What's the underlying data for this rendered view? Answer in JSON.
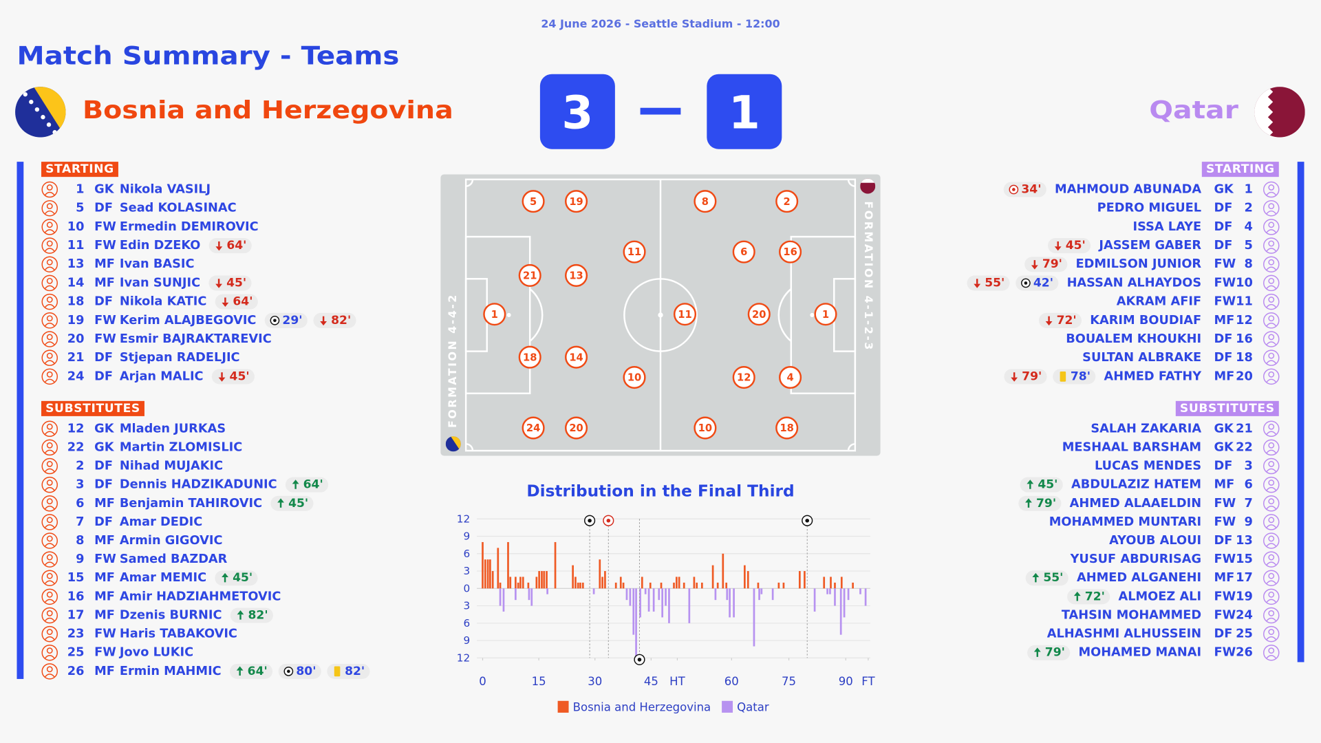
{
  "header": {
    "date_venue": "24 June 2026 - Seattle Stadium - 12:00",
    "title": "Match Summary - Teams"
  },
  "home": {
    "name": "Bosnia and Herzegovina",
    "score": 3,
    "formation": "FORMATION 4-4-2",
    "starting_label": "STARTING",
    "substitutes_label": "SUBSTITUTES",
    "starting": [
      {
        "number": 1,
        "pos": "GK",
        "name": "Nikola VASILJ"
      },
      {
        "number": 5,
        "pos": "DF",
        "name": "Sead KOLASINAC"
      },
      {
        "number": 10,
        "pos": "FW",
        "name": "Ermedin DEMIROVIC"
      },
      {
        "number": 11,
        "pos": "FW",
        "name": "Edin DZEKO",
        "events": [
          {
            "type": "off",
            "minute": "64'"
          }
        ]
      },
      {
        "number": 13,
        "pos": "MF",
        "name": "Ivan BASIC"
      },
      {
        "number": 14,
        "pos": "MF",
        "name": "Ivan SUNJIC",
        "events": [
          {
            "type": "off",
            "minute": "45'"
          }
        ]
      },
      {
        "number": 18,
        "pos": "DF",
        "name": "Nikola KATIC",
        "events": [
          {
            "type": "off",
            "minute": "64'"
          }
        ]
      },
      {
        "number": 19,
        "pos": "FW",
        "name": "Kerim ALAJBEGOVIC",
        "events": [
          {
            "type": "goal",
            "minute": "29'"
          },
          {
            "type": "off",
            "minute": "82'"
          }
        ]
      },
      {
        "number": 20,
        "pos": "FW",
        "name": "Esmir BAJRAKTAREVIC"
      },
      {
        "number": 21,
        "pos": "DF",
        "name": "Stjepan RADELJIC"
      },
      {
        "number": 24,
        "pos": "DF",
        "name": "Arjan MALIC",
        "events": [
          {
            "type": "off",
            "minute": "45'"
          }
        ]
      }
    ],
    "substitutes": [
      {
        "number": 12,
        "pos": "GK",
        "name": "Mladen JURKAS"
      },
      {
        "number": 22,
        "pos": "GK",
        "name": "Martin ZLOMISLIC"
      },
      {
        "number": 2,
        "pos": "DF",
        "name": "Nihad MUJAKIC"
      },
      {
        "number": 3,
        "pos": "DF",
        "name": "Dennis HADZIKADUNIC",
        "events": [
          {
            "type": "on",
            "minute": "64'"
          }
        ]
      },
      {
        "number": 6,
        "pos": "MF",
        "name": "Benjamin TAHIROVIC",
        "events": [
          {
            "type": "on",
            "minute": "45'"
          }
        ]
      },
      {
        "number": 7,
        "pos": "DF",
        "name": "Amar DEDIC"
      },
      {
        "number": 8,
        "pos": "MF",
        "name": "Armin GIGOVIC"
      },
      {
        "number": 9,
        "pos": "FW",
        "name": "Samed BAZDAR"
      },
      {
        "number": 15,
        "pos": "MF",
        "name": "Amar MEMIC",
        "events": [
          {
            "type": "on",
            "minute": "45'"
          }
        ]
      },
      {
        "number": 16,
        "pos": "MF",
        "name": "Amir HADZIAHMETOVIC"
      },
      {
        "number": 17,
        "pos": "MF",
        "name": "Dzenis BURNIC",
        "events": [
          {
            "type": "on",
            "minute": "82'"
          }
        ]
      },
      {
        "number": 23,
        "pos": "FW",
        "name": "Haris TABAKOVIC"
      },
      {
        "number": 25,
        "pos": "FW",
        "name": "Jovo LUKIC"
      },
      {
        "number": 26,
        "pos": "MF",
        "name": "Ermin MAHMIC",
        "events": [
          {
            "type": "on",
            "minute": "64'"
          },
          {
            "type": "goal",
            "minute": "80'"
          },
          {
            "type": "yellow",
            "minute": "82'"
          }
        ]
      }
    ],
    "pitch": [
      1,
      5,
      21,
      18,
      24,
      19,
      13,
      14,
      20,
      11,
      10
    ]
  },
  "away": {
    "name": "Qatar",
    "score": 1,
    "formation": "FORMATION 4-1-2-3",
    "starting_label": "STARTING",
    "substitutes_label": "SUBSTITUTES",
    "starting": [
      {
        "number": 1,
        "pos": "GK",
        "name": "MAHMOUD ABUNADA",
        "events": [
          {
            "type": "own-goal",
            "minute": "34'"
          }
        ]
      },
      {
        "number": 2,
        "pos": "DF",
        "name": "PEDRO MIGUEL"
      },
      {
        "number": 4,
        "pos": "DF",
        "name": "ISSA LAYE"
      },
      {
        "number": 5,
        "pos": "DF",
        "name": "JASSEM GABER",
        "events": [
          {
            "type": "off",
            "minute": "45'"
          }
        ]
      },
      {
        "number": 8,
        "pos": "FW",
        "name": "EDMILSON JUNIOR",
        "events": [
          {
            "type": "off",
            "minute": "79'"
          }
        ]
      },
      {
        "number": 10,
        "pos": "FW",
        "name": "HASSAN ALHAYDOS",
        "events": [
          {
            "type": "off",
            "minute": "55'"
          },
          {
            "type": "goal",
            "minute": "42'"
          }
        ]
      },
      {
        "number": 11,
        "pos": "FW",
        "name": "AKRAM AFIF"
      },
      {
        "number": 12,
        "pos": "MF",
        "name": "KARIM BOUDIAF",
        "events": [
          {
            "type": "off",
            "minute": "72'"
          }
        ]
      },
      {
        "number": 16,
        "pos": "DF",
        "name": "BOUALEM KHOUKHI"
      },
      {
        "number": 18,
        "pos": "DF",
        "name": "SULTAN ALBRAKE"
      },
      {
        "number": 20,
        "pos": "MF",
        "name": "AHMED FATHY",
        "events": [
          {
            "type": "off",
            "minute": "79'"
          },
          {
            "type": "yellow",
            "minute": "78'"
          }
        ]
      }
    ],
    "substitutes": [
      {
        "number": 21,
        "pos": "GK",
        "name": "SALAH ZAKARIA"
      },
      {
        "number": 22,
        "pos": "GK",
        "name": "MESHAAL BARSHAM"
      },
      {
        "number": 3,
        "pos": "DF",
        "name": "LUCAS MENDES"
      },
      {
        "number": 6,
        "pos": "MF",
        "name": "ABDULAZIZ HATEM",
        "events": [
          {
            "type": "on",
            "minute": "45'"
          }
        ]
      },
      {
        "number": 7,
        "pos": "FW",
        "name": "AHMED ALAAELDIN",
        "events": [
          {
            "type": "on",
            "minute": "79'"
          }
        ]
      },
      {
        "number": 9,
        "pos": "FW",
        "name": "MOHAMMED MUNTARI"
      },
      {
        "number": 13,
        "pos": "DF",
        "name": "AYOUB ALOUI"
      },
      {
        "number": 15,
        "pos": "FW",
        "name": "YUSUF ABDURISAG"
      },
      {
        "number": 17,
        "pos": "MF",
        "name": "AHMED ALGANEHI",
        "events": [
          {
            "type": "on",
            "minute": "55'"
          }
        ]
      },
      {
        "number": 19,
        "pos": "FW",
        "name": "ALMOEZ ALI",
        "events": [
          {
            "type": "on",
            "minute": "72'"
          }
        ]
      },
      {
        "number": 24,
        "pos": "FW",
        "name": "TAHSIN MOHAMMED"
      },
      {
        "number": 25,
        "pos": "DF",
        "name": "ALHASHMI ALHUSSEIN"
      },
      {
        "number": 26,
        "pos": "FW",
        "name": "MOHAMED MANAI",
        "events": [
          {
            "type": "on",
            "minute": "79'"
          }
        ]
      }
    ],
    "pitch": [
      1,
      2,
      16,
      4,
      18,
      20,
      6,
      12,
      8,
      11,
      10
    ]
  },
  "chart_data": {
    "type": "bar",
    "title": "Distribution in the Final Third",
    "xlim": [
      -2,
      104
    ],
    "ylim": [
      -12,
      12
    ],
    "xticks": [
      0,
      15,
      30,
      45,
      {
        "value": 52,
        "label": "HT"
      },
      {
        "value": 66.5,
        "label": "60"
      },
      {
        "value": 81.8,
        "label": "75"
      },
      {
        "value": 97,
        "label": "90"
      },
      {
        "value": 103,
        "label": "FT"
      }
    ],
    "yticks": [
      {
        "value": -12,
        "label": "12"
      },
      {
        "value": -9,
        "label": "9"
      },
      {
        "value": -6,
        "label": "6"
      },
      {
        "value": -3,
        "label": "3"
      },
      0,
      3,
      6,
      9,
      12
    ],
    "grid": true,
    "series": [
      {
        "name": "Bosnia and Herzegovina",
        "color": "#ef5a24",
        "x": [
          0,
          0.7,
          1.4,
          2,
          2.7,
          4.1,
          4.7,
          6.8,
          7.4,
          8.8,
          9.5,
          10.1,
          10.8,
          12.2,
          14.4,
          15.1,
          15.8,
          16.4,
          17.1,
          19.4,
          24.1,
          24.8,
          25.5,
          26.1,
          26.8,
          31.3,
          32,
          32.7,
          35.6,
          36.9,
          37.6,
          42.6,
          44.8,
          47.7,
          51.1,
          51.8,
          52.5,
          53.8,
          56.5,
          57.2,
          58.6,
          61.5,
          62.8,
          64.2,
          65.1,
          70,
          70.9,
          73.6,
          79.1,
          80.4,
          84.7,
          86,
          91.2,
          93,
          94.1,
          95.9,
          98.9
        ],
        "values": [
          8,
          5,
          5,
          5,
          3,
          7,
          1,
          8,
          2,
          2,
          1,
          2,
          2,
          1,
          2,
          3,
          3,
          3,
          3,
          8,
          4,
          2,
          1,
          1,
          1,
          5,
          2,
          3,
          1,
          2,
          1,
          2,
          1,
          1,
          1,
          2,
          2,
          1,
          2,
          1,
          1,
          4,
          1,
          6,
          1,
          4,
          3,
          1,
          1,
          1,
          3,
          3,
          2,
          2,
          1,
          2,
          1
        ]
      },
      {
        "name": "Qatar",
        "color": "#b792f0",
        "x": [
          4.7,
          5.6,
          8.8,
          12.4,
          13.1,
          17.3,
          29.7,
          38.5,
          39.4,
          40.3,
          41,
          42.1,
          43.5,
          44.4,
          45.7,
          47.1,
          48,
          48.9,
          49.8,
          55.2,
          62.2,
          65.3,
          66,
          67.1,
          72.5,
          73.9,
          74.5,
          77.5,
          88.7,
          92.1,
          92.8,
          94.1,
          95.7,
          96.6,
          97.7,
          100.9,
          102.3
        ],
        "values": [
          -3,
          -4,
          -2,
          -2,
          -3,
          -1,
          -1,
          -2,
          -3,
          -8,
          -12,
          -5,
          -1,
          -4,
          -4,
          -2,
          -5,
          -3,
          -6,
          -6,
          -2,
          -2,
          -5,
          -5,
          -10,
          -2,
          -1,
          -2,
          -4,
          -1,
          -1,
          -3,
          -8,
          -5,
          -2,
          -1,
          -3
        ]
      }
    ],
    "events": [
      {
        "x": 28.6,
        "team": "home",
        "type": "goal"
      },
      {
        "x": 33.6,
        "team": "home",
        "type": "own-goal"
      },
      {
        "x": 41.9,
        "team": "away",
        "type": "goal"
      },
      {
        "x": 86.7,
        "team": "home",
        "type": "goal"
      }
    ]
  }
}
